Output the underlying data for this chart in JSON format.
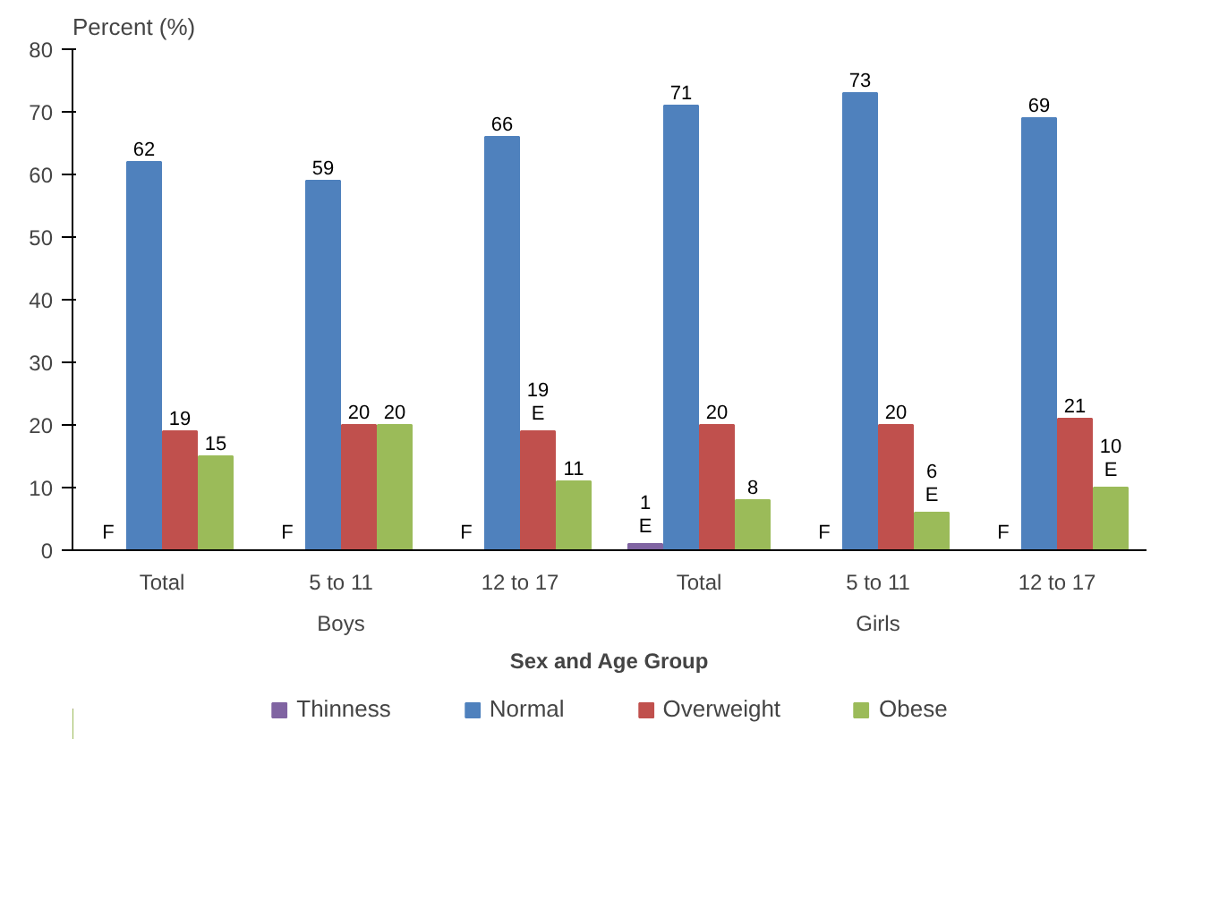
{
  "chart_data": {
    "type": "bar",
    "ylabel": "Percent (%)",
    "xlabel": "Sex and Age Group",
    "categories": [
      "Total",
      "5 to 11",
      "12 to 17",
      "Total",
      "5 to 11",
      "12 to 17"
    ],
    "annotations": [
      "Boys",
      "Girls"
    ],
    "ylim": [
      0,
      80
    ],
    "yticks": [
      0,
      10,
      20,
      30,
      40,
      50,
      60,
      70,
      80
    ],
    "grid": false,
    "legend": "bottom",
    "series": [
      {
        "name": "Thinness",
        "color": "#8064a2",
        "values": [
          null,
          null,
          null,
          1,
          null,
          null
        ],
        "value_labels": [
          "F",
          "F",
          "F",
          "1\nE",
          "F",
          "F"
        ]
      },
      {
        "name": "Normal",
        "color": "#4f81bd",
        "values": [
          62,
          59,
          66,
          71,
          73,
          69
        ],
        "value_labels": [
          "62",
          "59",
          "66",
          "71",
          "73",
          "69"
        ]
      },
      {
        "name": "Overweight",
        "color": "#c0504d",
        "values": [
          19,
          20,
          19,
          20,
          20,
          21
        ],
        "value_labels": [
          "19",
          "20",
          "19\nE",
          "20",
          "20",
          "21"
        ]
      },
      {
        "name": "Obese",
        "color": "#9bbb59",
        "values": [
          15,
          20,
          11,
          8,
          6,
          10
        ],
        "value_labels": [
          "15",
          "20",
          "11",
          "8",
          "6\nE",
          "10\nE"
        ]
      }
    ]
  }
}
